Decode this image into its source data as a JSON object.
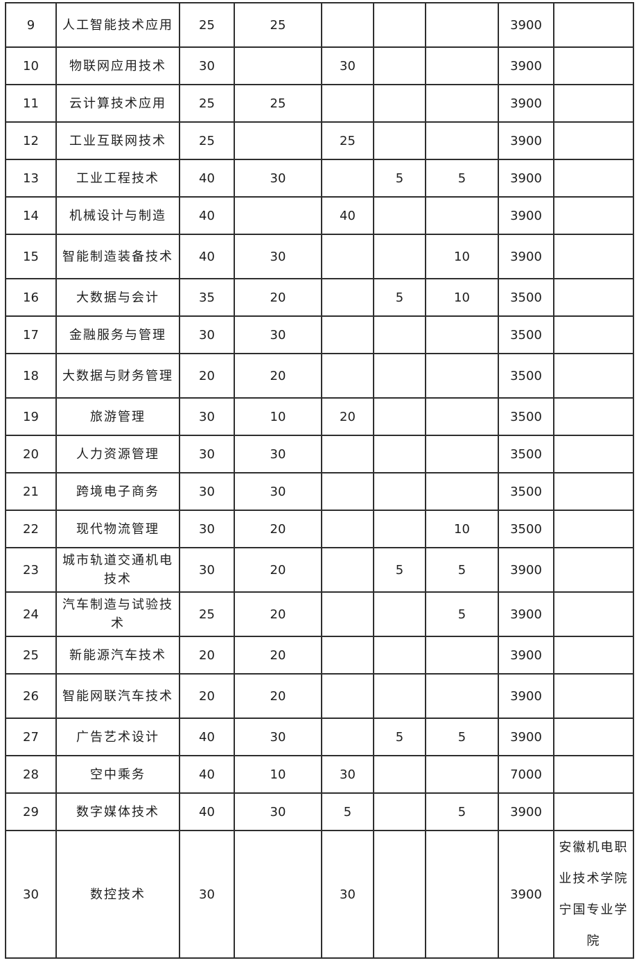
{
  "page": {
    "background_color": "#ffffff",
    "border_color": "#2e2e2e",
    "text_color": "#1e1e1e"
  },
  "table": {
    "rows": [
      {
        "no": "9",
        "major": "人工智能技术应用",
        "plan": "25",
        "c4": "25",
        "c5": "",
        "c6": "",
        "c7": "",
        "fee": "3900",
        "note": ""
      },
      {
        "no": "10",
        "major": "物联网应用技术",
        "plan": "30",
        "c4": "",
        "c5": "30",
        "c6": "",
        "c7": "",
        "fee": "3900",
        "note": ""
      },
      {
        "no": "11",
        "major": "云计算技术应用",
        "plan": "25",
        "c4": "25",
        "c5": "",
        "c6": "",
        "c7": "",
        "fee": "3900",
        "note": ""
      },
      {
        "no": "12",
        "major": "工业互联网技术",
        "plan": "25",
        "c4": "",
        "c5": "25",
        "c6": "",
        "c7": "",
        "fee": "3900",
        "note": ""
      },
      {
        "no": "13",
        "major": "工业工程技术",
        "plan": "40",
        "c4": "30",
        "c5": "",
        "c6": "5",
        "c7": "5",
        "fee": "3900",
        "note": ""
      },
      {
        "no": "14",
        "major": "机械设计与制造",
        "plan": "40",
        "c4": "",
        "c5": "40",
        "c6": "",
        "c7": "",
        "fee": "3900",
        "note": ""
      },
      {
        "no": "15",
        "major": "智能制造装备技术",
        "plan": "40",
        "c4": "30",
        "c5": "",
        "c6": "",
        "c7": "10",
        "fee": "3900",
        "note": ""
      },
      {
        "no": "16",
        "major": "大数据与会计",
        "plan": "35",
        "c4": "20",
        "c5": "",
        "c6": "5",
        "c7": "10",
        "fee": "3500",
        "note": ""
      },
      {
        "no": "17",
        "major": "金融服务与管理",
        "plan": "30",
        "c4": "30",
        "c5": "",
        "c6": "",
        "c7": "",
        "fee": "3500",
        "note": ""
      },
      {
        "no": "18",
        "major": "大数据与财务管理",
        "plan": "20",
        "c4": "20",
        "c5": "",
        "c6": "",
        "c7": "",
        "fee": "3500",
        "note": ""
      },
      {
        "no": "19",
        "major": "旅游管理",
        "plan": "30",
        "c4": "10",
        "c5": "20",
        "c6": "",
        "c7": "",
        "fee": "3500",
        "note": ""
      },
      {
        "no": "20",
        "major": "人力资源管理",
        "plan": "30",
        "c4": "30",
        "c5": "",
        "c6": "",
        "c7": "",
        "fee": "3500",
        "note": ""
      },
      {
        "no": "21",
        "major": "跨境电子商务",
        "plan": "30",
        "c4": "30",
        "c5": "",
        "c6": "",
        "c7": "",
        "fee": "3500",
        "note": ""
      },
      {
        "no": "22",
        "major": "现代物流管理",
        "plan": "30",
        "c4": "20",
        "c5": "",
        "c6": "",
        "c7": "10",
        "fee": "3500",
        "note": ""
      },
      {
        "no": "23",
        "major": "城市轨道交通机电技术",
        "plan": "30",
        "c4": "20",
        "c5": "",
        "c6": "5",
        "c7": "5",
        "fee": "3900",
        "note": ""
      },
      {
        "no": "24",
        "major": "汽车制造与试验技术",
        "plan": "25",
        "c4": "20",
        "c5": "",
        "c6": "",
        "c7": "5",
        "fee": "3900",
        "note": ""
      },
      {
        "no": "25",
        "major": "新能源汽车技术",
        "plan": "20",
        "c4": "20",
        "c5": "",
        "c6": "",
        "c7": "",
        "fee": "3900",
        "note": ""
      },
      {
        "no": "26",
        "major": "智能网联汽车技术",
        "plan": "20",
        "c4": "20",
        "c5": "",
        "c6": "",
        "c7": "",
        "fee": "3900",
        "note": ""
      },
      {
        "no": "27",
        "major": "广告艺术设计",
        "plan": "40",
        "c4": "30",
        "c5": "",
        "c6": "5",
        "c7": "5",
        "fee": "3900",
        "note": ""
      },
      {
        "no": "28",
        "major": "空中乘务",
        "plan": "40",
        "c4": "10",
        "c5": "30",
        "c6": "",
        "c7": "",
        "fee": "7000",
        "note": ""
      },
      {
        "no": "29",
        "major": "数字媒体技术",
        "plan": "40",
        "c4": "30",
        "c5": "5",
        "c6": "",
        "c7": "5",
        "fee": "3900",
        "note": ""
      },
      {
        "no": "30",
        "major": "数控技术",
        "plan": "30",
        "c4": "",
        "c5": "30",
        "c6": "",
        "c7": "",
        "fee": "3900",
        "note": "安徽机电职业技术学院宁国专业学院"
      }
    ]
  }
}
